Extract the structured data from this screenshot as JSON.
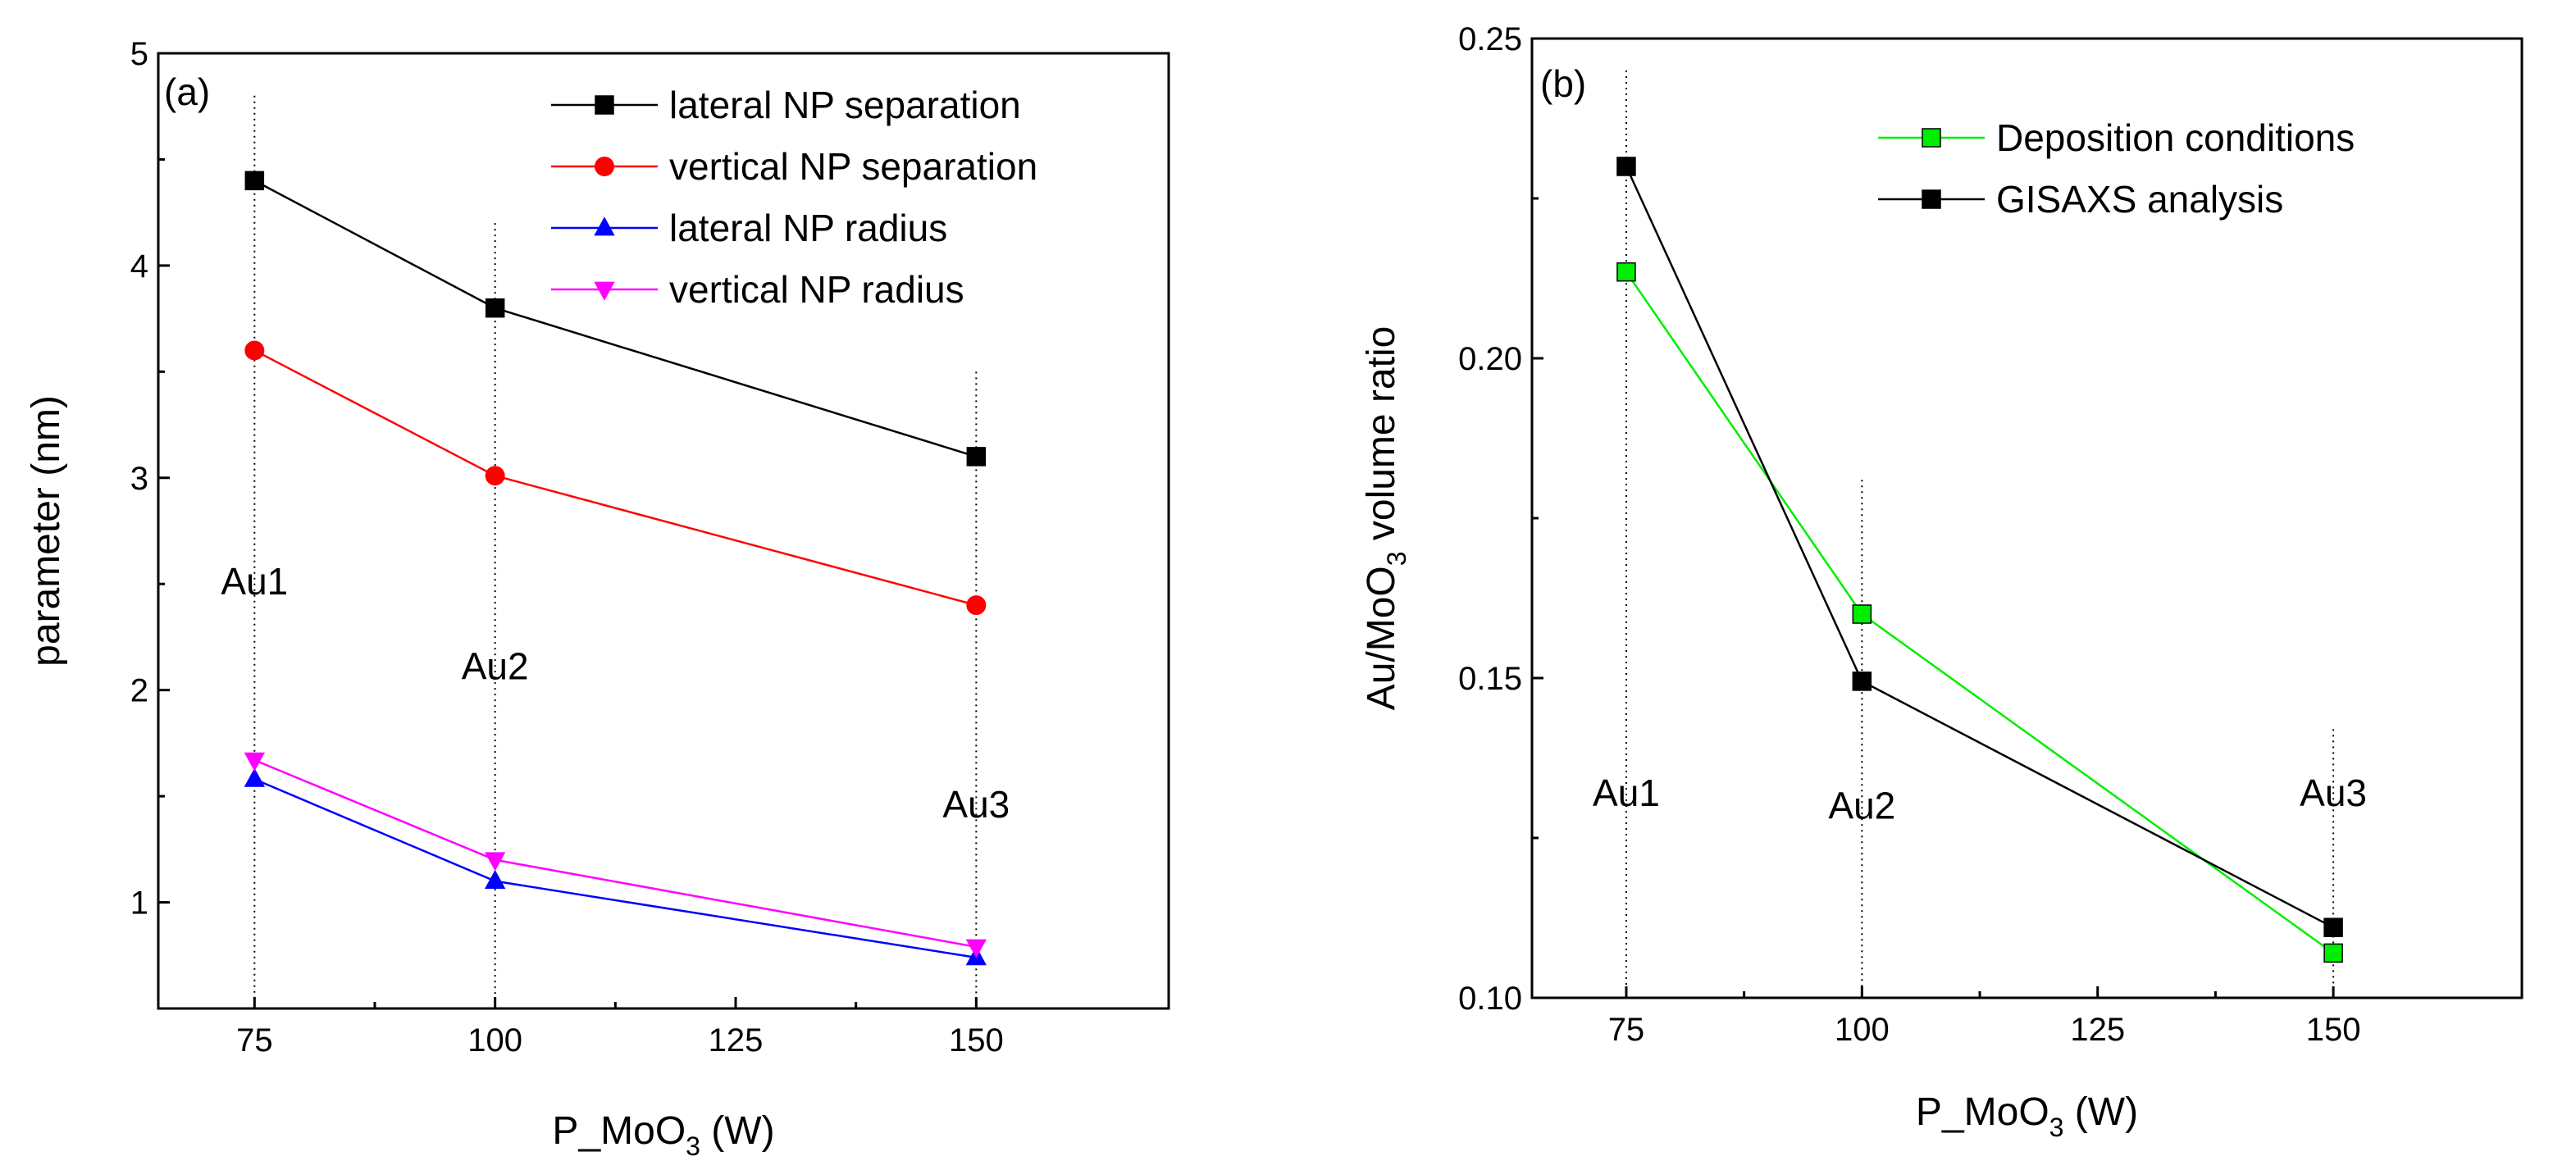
{
  "chart_data": [
    {
      "type": "line",
      "panel_label": "(a)",
      "xlabel_main": "P_MoO",
      "xlabel_sub": "3",
      "xlabel_tail": " (W)",
      "ylabel": "parameter (nm)",
      "xlim": [
        65,
        170
      ],
      "ylim": [
        0.5,
        5
      ],
      "xticks": [
        75,
        100,
        125,
        150
      ],
      "yticks": [
        1,
        2,
        3,
        4,
        5
      ],
      "x": [
        75,
        100,
        150
      ],
      "series": [
        {
          "name": "lateral NP separation",
          "color": "#000000",
          "marker": "square",
          "values": [
            4.4,
            3.8,
            3.1
          ]
        },
        {
          "name": "vertical NP separation",
          "color": "#ff0000",
          "marker": "circle",
          "values": [
            3.6,
            3.01,
            2.4
          ]
        },
        {
          "name": "lateral NP radius",
          "color": "#0000ff",
          "marker": "triangle-up",
          "values": [
            1.58,
            1.1,
            0.74
          ]
        },
        {
          "name": "vertical NP radius",
          "color": "#ff00ff",
          "marker": "triangle-down",
          "values": [
            1.67,
            1.2,
            0.79
          ]
        }
      ],
      "guides": [
        {
          "x": 75,
          "top": 4.8
        },
        {
          "x": 100,
          "top": 4.2
        },
        {
          "x": 150,
          "top": 3.5
        }
      ],
      "annotations": [
        {
          "text": "Au1",
          "x": 75,
          "y": 2.45
        },
        {
          "text": "Au2",
          "x": 100,
          "y": 2.05
        },
        {
          "text": "Au3",
          "x": 150,
          "y": 1.4
        }
      ],
      "legend_position": "top-right"
    },
    {
      "type": "line",
      "panel_label": "(b)",
      "xlabel_main": "P_MoO",
      "xlabel_sub": "3",
      "xlabel_tail": " (W)",
      "ylabel_main": "Au/MoO",
      "ylabel_sub": "3",
      "ylabel_tail": " volume ratio",
      "xlim": [
        65,
        170
      ],
      "ylim": [
        0.1,
        0.25
      ],
      "xticks": [
        75,
        100,
        125,
        150
      ],
      "yticks": [
        0.1,
        0.15,
        0.2,
        0.25
      ],
      "ytick_labels": [
        "0.10",
        "0.15",
        "0.20",
        "0.25"
      ],
      "x": [
        75,
        100,
        150
      ],
      "series": [
        {
          "name": "Deposition conditions",
          "color": "#00ee00",
          "marker": "square",
          "values": [
            0.2135,
            0.16,
            0.107
          ]
        },
        {
          "name": "GISAXS analysis",
          "color": "#000000",
          "marker": "square",
          "values": [
            0.23,
            0.1495,
            0.111
          ]
        }
      ],
      "guides": [
        {
          "x": 75,
          "top": 0.245
        },
        {
          "x": 100,
          "top": 0.181
        },
        {
          "x": 150,
          "top": 0.142
        }
      ],
      "annotations": [
        {
          "text": "Au1",
          "x": 75,
          "y": 0.13
        },
        {
          "text": "Au2",
          "x": 100,
          "y": 0.128
        },
        {
          "text": "Au3",
          "x": 150,
          "y": 0.13
        }
      ],
      "legend_position": "top-right"
    }
  ]
}
